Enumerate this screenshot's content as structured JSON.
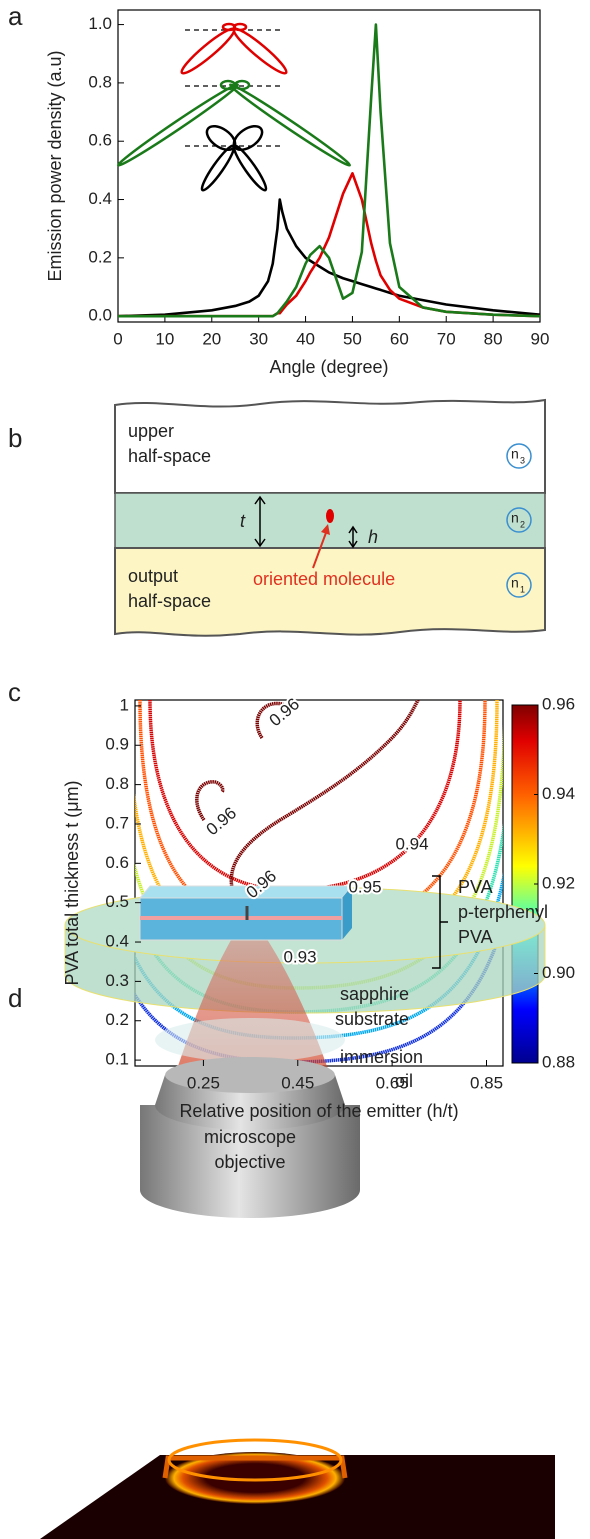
{
  "panel_labels": [
    "a",
    "b",
    "c",
    "d"
  ],
  "chart_data": [
    {
      "type": "line",
      "xlabel": "Angle (degree)",
      "ylabel": "Emission power density (a.u)",
      "xlim": [
        0,
        90
      ],
      "ylim": [
        -0.02,
        1.05
      ],
      "xticks": [
        0,
        10,
        20,
        30,
        40,
        50,
        60,
        70,
        80,
        90
      ],
      "yticks": [
        {
          "value": 0,
          "label": "0.0"
        },
        0.2,
        0.4,
        0.6,
        0.8,
        {
          "value": 1,
          "label": "1.0"
        }
      ],
      "x": [
        0,
        10,
        20,
        25,
        28,
        30,
        32,
        33,
        34,
        34.5,
        35,
        36,
        38,
        40,
        41,
        43,
        45,
        48,
        50,
        52,
        54,
        55,
        56,
        58,
        60,
        65,
        70,
        80,
        90
      ],
      "series": [
        {
          "color": "#000000",
          "values": [
            0,
            0.005,
            0.02,
            0.035,
            0.05,
            0.07,
            0.12,
            0.18,
            0.3,
            0.4,
            0.36,
            0.3,
            0.24,
            0.2,
            0.19,
            0.17,
            0.15,
            0.13,
            0.12,
            0.11,
            0.1,
            0.095,
            0.09,
            0.08,
            0.07,
            0.055,
            0.04,
            0.02,
            0.005
          ]
        },
        {
          "color": "#e00000",
          "values": [
            0,
            0,
            0,
            0,
            0,
            0,
            0,
            0,
            0.01,
            0.01,
            0.02,
            0.04,
            0.07,
            0.12,
            0.15,
            0.2,
            0.27,
            0.42,
            0.49,
            0.4,
            0.25,
            0.19,
            0.14,
            0.09,
            0.06,
            0.03,
            0.015,
            0.005,
            0
          ]
        },
        {
          "color": "#1a7a1a",
          "values": [
            0,
            0,
            0,
            0,
            0,
            0,
            0,
            0,
            0.01,
            0.02,
            0.03,
            0.05,
            0.1,
            0.18,
            0.21,
            0.24,
            0.2,
            0.06,
            0.08,
            0.22,
            0.75,
            1.0,
            0.7,
            0.25,
            0.1,
            0.03,
            0.015,
            0.005,
            0
          ]
        }
      ]
    },
    {
      "type": "contour",
      "xlabel": "Relative position of the emitter (h/t)",
      "ylabel": "PVA total thickness  t (μm)",
      "xlim": [
        0.105,
        0.885
      ],
      "ylim": [
        0.085,
        1.015
      ],
      "xticks": [
        0.25,
        0.45,
        0.65,
        0.85
      ],
      "yticks": [
        0.1,
        0.2,
        0.3,
        0.4,
        0.5,
        0.6,
        0.7,
        0.8,
        0.9,
        1
      ],
      "levels": [
        0.89,
        0.9,
        0.91,
        0.92,
        0.93,
        0.94,
        0.95,
        0.96
      ],
      "level_colors": [
        "#1030e0",
        "#00a8f0",
        "#30e0b0",
        "#c8f030",
        "#ffb000",
        "#ff5000",
        "#d80000",
        "#7a0000"
      ],
      "contour_labels": [
        0.96,
        0.96,
        0.96,
        0.95,
        0.94,
        0.93
      ],
      "colorbar_lim": [
        0.88,
        0.96
      ],
      "colorbar_ticks": [
        0.88,
        {
          "value": 0.9,
          "label": "0.90"
        },
        0.92,
        0.94,
        0.96
      ]
    }
  ],
  "diagram_b": {
    "upper": [
      "upper",
      "half-space"
    ],
    "output": [
      "output",
      "half-space"
    ],
    "indices": [
      {
        "n": "n",
        "sub": "3"
      },
      {
        "n": "n",
        "sub": "2"
      },
      {
        "n": "n",
        "sub": "1"
      }
    ],
    "t": "t",
    "h": "h",
    "molecule": "oriented molecule"
  },
  "diagram_d": {
    "layers": [
      "PVA",
      "p-terphenyl",
      "PVA"
    ],
    "substrate": [
      "sapphire",
      "substrate"
    ],
    "oil": [
      "immersion",
      "oil"
    ],
    "objective": [
      "microscope",
      "objective"
    ]
  }
}
